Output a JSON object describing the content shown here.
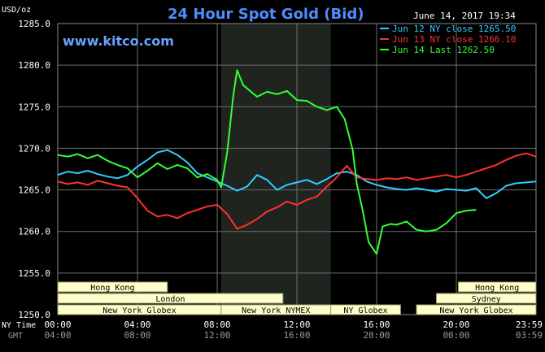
{
  "header": {
    "units": "USD/oz",
    "title": "24 Hour Spot Gold (Bid)",
    "timestamp": "June 14, 2017 19:34",
    "brand": "www.kitco.com"
  },
  "legend": [
    {
      "text": "Jun 12 NY close 1265.50",
      "color": "#33ccff"
    },
    {
      "text": "Jun 13 NY close 1266.10",
      "color": "#ff3030"
    },
    {
      "text": "Jun 14 Last 1262.50",
      "color": "#33ff33"
    }
  ],
  "time_rows": {
    "ny_label": "NY Time",
    "gmt_label": "GMT",
    "ny_ticks": [
      "00:00",
      "04:00",
      "08:00",
      "12:00",
      "16:00",
      "20:00",
      "23:59"
    ],
    "gmt_ticks": [
      "04:00",
      "08:00",
      "12:00",
      "16:00",
      "20:00",
      "00:00",
      "03:59"
    ]
  },
  "sessions": [
    {
      "label": "Hong Kong",
      "row": 0
    },
    {
      "label": "London",
      "row": 1
    },
    {
      "label": "New York Globex",
      "row": 2
    },
    {
      "label": "New York NYMEX",
      "row": 2
    },
    {
      "label": "NY Globex",
      "row": 2
    },
    {
      "label": "Hong Kong",
      "row": 0
    },
    {
      "label": "Sydney",
      "row": 1
    },
    {
      "label": "New York Globex",
      "row": 2
    }
  ],
  "colors": {
    "background": "#000000",
    "grid": "#6e6e6e",
    "title": "#4f8dff",
    "brand": "#6aa3ff",
    "session_fill": "#ffffcc",
    "session_text": "#000000",
    "shade": "#1f241f"
  },
  "chart_data": {
    "type": "line",
    "xlabel": "",
    "ylabel": "USD/oz",
    "ylim": [
      1250,
      1285
    ],
    "y_ticks": [
      "1250.0",
      "1255.0",
      "1260.0",
      "1265.0",
      "1270.0",
      "1275.0",
      "1280.0",
      "1285.0"
    ],
    "x_unit": "hours (NY time)",
    "xlim": [
      0,
      24
    ],
    "grid": true,
    "legend_position": "top-right",
    "series": [
      {
        "name": "Jun 12 NY close 1265.50",
        "color": "#33ccff",
        "x": [
          0,
          0.5,
          1,
          1.5,
          2,
          2.5,
          3,
          3.5,
          4,
          4.5,
          5,
          5.5,
          6,
          6.5,
          7,
          7.5,
          8,
          8.5,
          9,
          9.5,
          10,
          10.5,
          11,
          11.5,
          12,
          12.5,
          13,
          13.5,
          14,
          14.5,
          15,
          15.5,
          16,
          16.5,
          17,
          17.5,
          18,
          18.5,
          19,
          19.5,
          20,
          20.5,
          21,
          21.5,
          22,
          22.5,
          23,
          23.5,
          24
        ],
        "values": [
          1266.8,
          1267.2,
          1267.0,
          1267.3,
          1266.9,
          1266.6,
          1266.4,
          1266.8,
          1267.8,
          1268.6,
          1269.5,
          1269.8,
          1269.2,
          1268.3,
          1267.0,
          1266.5,
          1266.0,
          1265.5,
          1264.9,
          1265.4,
          1266.8,
          1266.2,
          1265.0,
          1265.6,
          1265.9,
          1266.2,
          1265.7,
          1266.3,
          1267.0,
          1267.2,
          1266.8,
          1266.0,
          1265.6,
          1265.3,
          1265.1,
          1265.0,
          1265.2,
          1265.0,
          1264.8,
          1265.1,
          1265.0,
          1264.9,
          1265.2,
          1264.0,
          1264.6,
          1265.5,
          1265.8,
          1265.9,
          1266.0
        ]
      },
      {
        "name": "Jun 13 NY close 1266.10",
        "color": "#ff3030",
        "x": [
          0,
          0.5,
          1,
          1.5,
          2,
          2.5,
          3,
          3.5,
          4,
          4.5,
          5,
          5.5,
          6,
          6.5,
          7,
          7.5,
          8,
          8.5,
          9,
          9.5,
          10,
          10.5,
          11,
          11.5,
          12,
          12.5,
          13,
          13.5,
          14,
          14.5,
          15,
          15.5,
          16,
          16.5,
          17,
          17.5,
          18,
          18.5,
          19,
          19.5,
          20,
          20.5,
          21,
          21.5,
          22,
          22.5,
          23,
          23.5,
          24
        ],
        "values": [
          1266.0,
          1265.7,
          1265.9,
          1265.6,
          1266.1,
          1265.8,
          1265.5,
          1265.3,
          1264.0,
          1262.5,
          1261.8,
          1262.0,
          1261.6,
          1262.2,
          1262.6,
          1263.0,
          1263.2,
          1262.1,
          1260.3,
          1260.8,
          1261.5,
          1262.4,
          1262.9,
          1263.6,
          1263.2,
          1263.8,
          1264.2,
          1265.4,
          1266.5,
          1267.9,
          1266.5,
          1266.3,
          1266.2,
          1266.4,
          1266.3,
          1266.5,
          1266.2,
          1266.4,
          1266.6,
          1266.8,
          1266.5,
          1266.8,
          1267.2,
          1267.6,
          1268.0,
          1268.6,
          1269.1,
          1269.4,
          1269.0
        ]
      },
      {
        "name": "Jun 14 Last 1262.50",
        "color": "#33ff33",
        "x": [
          0,
          0.5,
          1,
          1.5,
          2,
          2.5,
          3,
          3.5,
          4,
          4.5,
          5,
          5.5,
          6,
          6.5,
          7,
          7.5,
          8,
          8.2,
          8.5,
          8.8,
          9,
          9.3,
          9.6,
          10,
          10.5,
          11,
          11.5,
          12,
          12.5,
          13,
          13.5,
          14,
          14.4,
          14.8,
          15,
          15.3,
          15.6,
          16,
          16.3,
          16.7,
          17,
          17.5,
          18,
          18.5,
          19,
          19.5,
          20,
          20.5,
          21
        ],
        "values": [
          1269.2,
          1269.0,
          1269.3,
          1268.8,
          1269.2,
          1268.5,
          1268.0,
          1267.6,
          1266.5,
          1267.3,
          1268.2,
          1267.5,
          1268.0,
          1267.6,
          1266.5,
          1266.9,
          1266.2,
          1265.3,
          1269.5,
          1276.2,
          1279.4,
          1277.6,
          1277.0,
          1276.2,
          1276.8,
          1276.5,
          1276.9,
          1275.8,
          1275.7,
          1275.0,
          1274.6,
          1275.0,
          1273.5,
          1269.8,
          1265.8,
          1262.5,
          1258.7,
          1257.3,
          1260.6,
          1260.9,
          1260.8,
          1261.2,
          1260.2,
          1260.0,
          1260.2,
          1261.0,
          1262.2,
          1262.5,
          1262.6
        ]
      }
    ]
  }
}
